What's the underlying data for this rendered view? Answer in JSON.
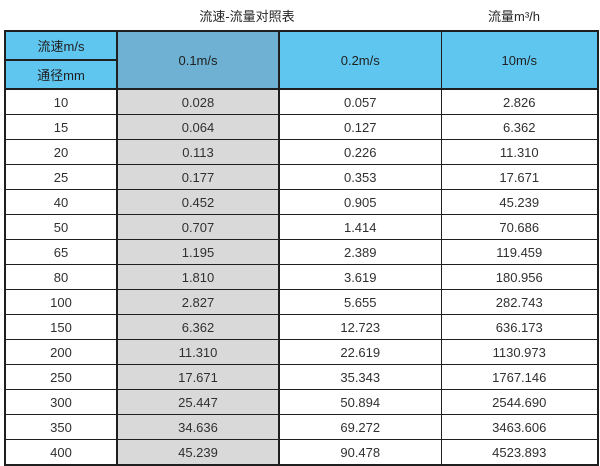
{
  "titles": {
    "left": "流速-流量对照表",
    "right": "流量m³/h"
  },
  "table": {
    "header": {
      "velocity_label": "流速m/s",
      "diameter_label": "通径mm",
      "columns": [
        "0.1m/s",
        "0.2m/s",
        "10m/s"
      ]
    },
    "rows": [
      [
        "10",
        "0.028",
        "0.057",
        "2.826"
      ],
      [
        "15",
        "0.064",
        "0.127",
        "6.362"
      ],
      [
        "20",
        "0.113",
        "0.226",
        "11.310"
      ],
      [
        "25",
        "0.177",
        "0.353",
        "17.671"
      ],
      [
        "40",
        "0.452",
        "0.905",
        "45.239"
      ],
      [
        "50",
        "0.707",
        "1.414",
        "70.686"
      ],
      [
        "65",
        "1.195",
        "2.389",
        "119.459"
      ],
      [
        "80",
        "1.810",
        "3.619",
        "180.956"
      ],
      [
        "100",
        "2.827",
        "5.655",
        "282.743"
      ],
      [
        "150",
        "6.362",
        "12.723",
        "636.173"
      ],
      [
        "200",
        "11.310",
        "22.619",
        "1130.973"
      ],
      [
        "250",
        "17.671",
        "35.343",
        "1767.146"
      ],
      [
        "300",
        "25.447",
        "50.894",
        "2544.690"
      ],
      [
        "350",
        "34.636",
        "69.272",
        "3463.606"
      ],
      [
        "400",
        "45.239",
        "90.478",
        "4523.893"
      ]
    ]
  },
  "colors": {
    "header_blue": "#5fc6f0",
    "header_muted_blue": "#6fb1d3",
    "gray_column": "#d9d9d9",
    "border": "#1f1f1f"
  },
  "chart_data": {
    "type": "table",
    "title": "流速-流量对照表",
    "unit_label": "流量m³/h",
    "row_header": "通径mm",
    "col_header": "流速m/s",
    "categories": [
      10,
      15,
      20,
      25,
      40,
      50,
      65,
      80,
      100,
      150,
      200,
      250,
      300,
      350,
      400
    ],
    "series": [
      {
        "name": "0.1m/s",
        "values": [
          0.028,
          0.064,
          0.113,
          0.177,
          0.452,
          0.707,
          1.195,
          1.81,
          2.827,
          6.362,
          11.31,
          17.671,
          25.447,
          34.636,
          45.239
        ]
      },
      {
        "name": "0.2m/s",
        "values": [
          0.057,
          0.127,
          0.226,
          0.353,
          0.905,
          1.414,
          2.389,
          3.619,
          5.655,
          12.723,
          22.619,
          35.343,
          50.894,
          69.272,
          90.478
        ]
      },
      {
        "name": "10m/s",
        "values": [
          2.826,
          6.362,
          11.31,
          17.671,
          45.239,
          70.686,
          119.459,
          180.956,
          282.743,
          636.173,
          1130.973,
          1767.146,
          2544.69,
          3463.606,
          4523.893
        ]
      }
    ]
  }
}
